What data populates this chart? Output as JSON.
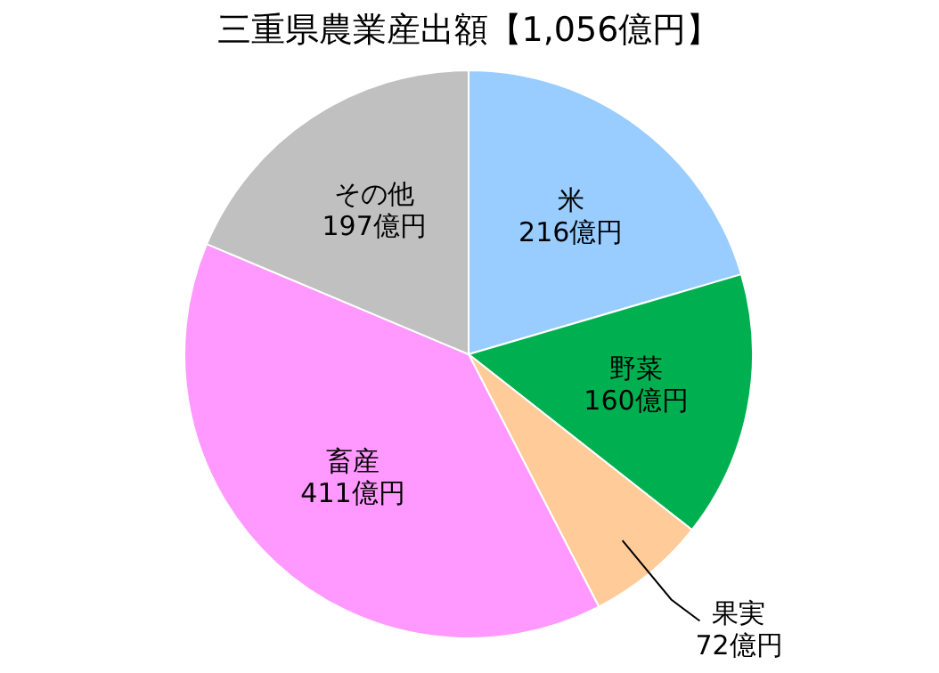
{
  "chart_data": {
    "type": "pie",
    "title": "三重県農業産出額【1,056億円】",
    "categories": [
      "米",
      "野菜",
      "果実",
      "畜産",
      "その他"
    ],
    "values": [
      216,
      160,
      72,
      411,
      197
    ],
    "value_labels": [
      "216億円",
      "160億円",
      "72億円",
      "411億円",
      "197億円"
    ],
    "colors": [
      "#99ccff",
      "#00b050",
      "#ffcc99",
      "#ff99ff",
      "#c0c0c0"
    ],
    "legend": false
  }
}
